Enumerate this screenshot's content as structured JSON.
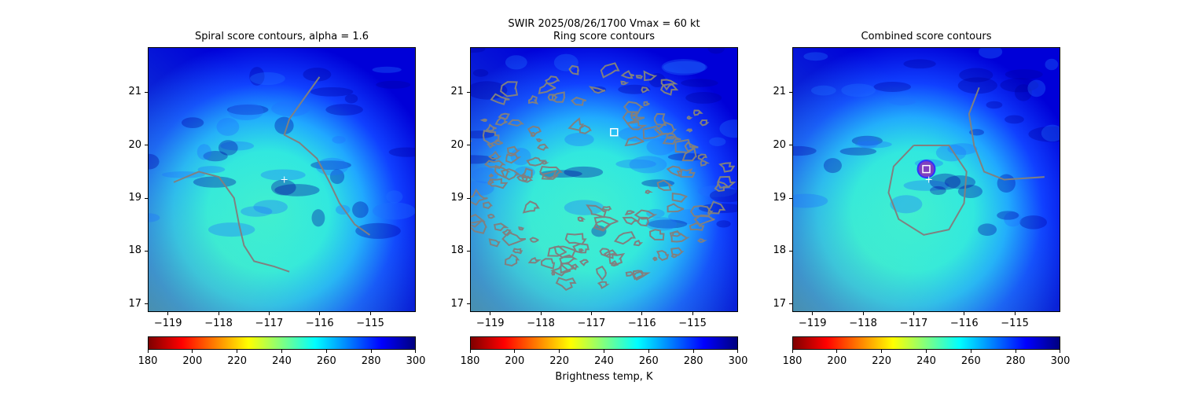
{
  "figure": {
    "suptitle_line1": "SWIR  2025/08/26/1700    Vmax = 60 kt",
    "suptitle_line2": ""
  },
  "panels": [
    {
      "title": "Spiral score contours, alpha =  1.6"
    },
    {
      "title": "Ring score contours"
    },
    {
      "title": "Combined score contours"
    }
  ],
  "colorbar": {
    "label": "Brightness temp, K",
    "ticks": [
      "180",
      "200",
      "220",
      "240",
      "260",
      "280",
      "300"
    ],
    "colormap": "jet_reversed",
    "range": [
      180,
      300
    ]
  },
  "colors": {
    "contour": "#808080",
    "marker": "#ffffff",
    "combined_max_marker_fill": "#7f3fbf"
  },
  "chart_data": [
    {
      "type": "heatmap",
      "title": "Spiral score contours, alpha =  1.6",
      "xlabel": "",
      "ylabel": "",
      "xlim": [
        -119.4,
        -114.1
      ],
      "ylim": [
        16.85,
        21.85
      ],
      "xticks": [
        -119,
        -118,
        -117,
        -116,
        -115
      ],
      "yticks": [
        17,
        18,
        19,
        20,
        21
      ],
      "center_estimate": {
        "lon": -116.7,
        "lat": 19.35
      },
      "contour_lines": [
        {
          "name": "spiral",
          "points": [
            [
              -118.9,
              19.3
            ],
            [
              -118.4,
              19.5
            ],
            [
              -118.0,
              19.4
            ],
            [
              -117.7,
              19.0
            ],
            [
              -117.6,
              18.5
            ],
            [
              -117.5,
              18.1
            ],
            [
              -117.3,
              17.8
            ],
            [
              -116.9,
              17.7
            ],
            [
              -116.6,
              17.6
            ]
          ]
        },
        {
          "name": "spiral-tail",
          "points": [
            [
              -116.0,
              21.3
            ],
            [
              -116.3,
              20.9
            ],
            [
              -116.6,
              20.5
            ],
            [
              -116.7,
              20.2
            ],
            [
              -116.4,
              20.05
            ],
            [
              -116.05,
              19.75
            ],
            [
              -115.8,
              19.3
            ],
            [
              -115.6,
              18.9
            ],
            [
              -115.3,
              18.5
            ],
            [
              -115.0,
              18.3
            ]
          ]
        }
      ]
    },
    {
      "type": "heatmap",
      "title": "Ring score contours",
      "xlabel": "",
      "ylabel": "",
      "xlim": [
        -119.4,
        -114.1
      ],
      "ylim": [
        16.85,
        21.85
      ],
      "xticks": [
        -119,
        -118,
        -117,
        -116,
        -115
      ],
      "yticks": [
        17,
        18,
        19,
        20,
        21
      ],
      "ring_max": {
        "lon": -116.55,
        "lat": 20.25
      },
      "contour_region": {
        "lon_range": [
          -119.1,
          -114.8
        ],
        "lat_range": [
          17.1,
          21.1
        ]
      }
    },
    {
      "type": "heatmap",
      "title": "Combined score contours",
      "xlabel": "",
      "ylabel": "",
      "xlim": [
        -119.4,
        -114.1
      ],
      "ylim": [
        16.85,
        21.85
      ],
      "xticks": [
        -119,
        -118,
        -117,
        -116,
        -115
      ],
      "yticks": [
        17,
        18,
        19,
        20,
        21
      ],
      "center_estimate": {
        "lon": -116.7,
        "lat": 19.35
      },
      "combined_max": {
        "lon": -116.75,
        "lat": 19.55
      },
      "contour_lines": [
        {
          "name": "ring",
          "points": [
            [
              -117.0,
              20.0
            ],
            [
              -116.3,
              20.0
            ],
            [
              -115.95,
              19.5
            ],
            [
              -116.0,
              18.9
            ],
            [
              -116.3,
              18.4
            ],
            [
              -116.8,
              18.3
            ],
            [
              -117.3,
              18.6
            ],
            [
              -117.5,
              19.1
            ],
            [
              -117.4,
              19.6
            ],
            [
              -117.0,
              20.0
            ]
          ]
        },
        {
          "name": "tail",
          "points": [
            [
              -115.7,
              21.1
            ],
            [
              -115.9,
              20.6
            ],
            [
              -115.8,
              20.0
            ],
            [
              -115.6,
              19.5
            ],
            [
              -115.2,
              19.35
            ],
            [
              -114.4,
              19.4
            ]
          ]
        }
      ]
    }
  ]
}
